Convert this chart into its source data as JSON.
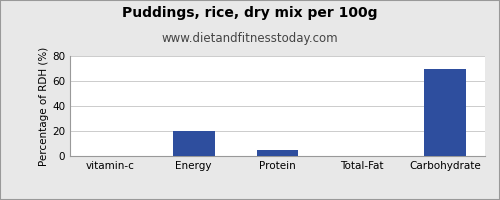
{
  "title": "Puddings, rice, dry mix per 100g",
  "subtitle": "www.dietandfitnesstoday.com",
  "categories": [
    "vitamin-c",
    "Energy",
    "Protein",
    "Total-Fat",
    "Carbohydrate"
  ],
  "values": [
    0,
    20,
    5,
    0,
    70
  ],
  "bar_color": "#2e4e9e",
  "ylabel": "Percentage of RDH (%)",
  "ylim": [
    0,
    80
  ],
  "yticks": [
    0,
    20,
    40,
    60,
    80
  ],
  "background_color": "#e8e8e8",
  "plot_bg_color": "#ffffff",
  "title_fontsize": 10,
  "subtitle_fontsize": 8.5,
  "ylabel_fontsize": 7.5,
  "tick_fontsize": 7.5,
  "border_color": "#999999",
  "grid_color": "#cccccc"
}
